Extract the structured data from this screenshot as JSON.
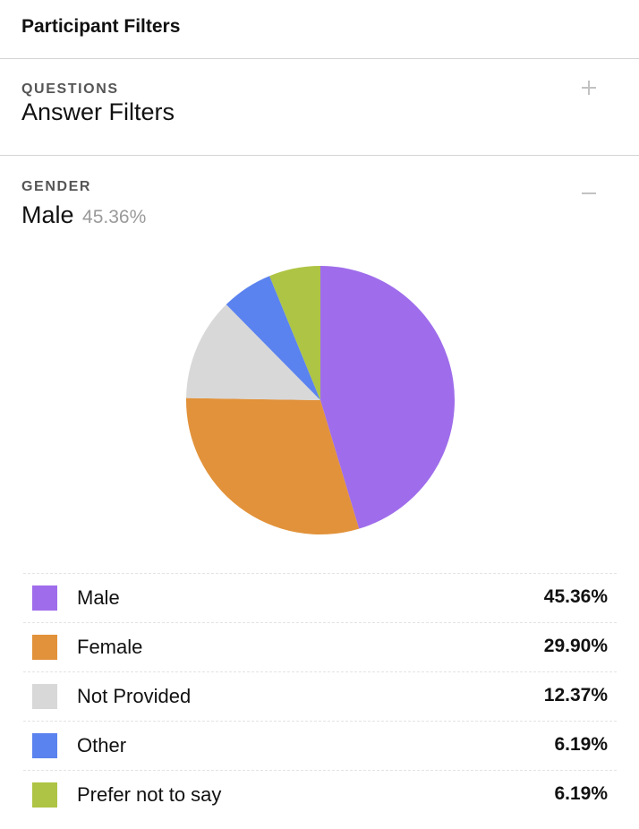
{
  "header": {
    "title": "Participant Filters"
  },
  "questions": {
    "label": "QUESTIONS",
    "value": "Answer Filters",
    "toggle_icon": "plus-icon"
  },
  "gender": {
    "label": "GENDER",
    "selected": "Male",
    "selected_pct": "45.36%",
    "toggle_icon": "minus-icon"
  },
  "chart_data": {
    "type": "pie",
    "categories": [
      "Male",
      "Female",
      "Not Provided",
      "Other",
      "Prefer not to say"
    ],
    "values": [
      45.36,
      29.9,
      12.37,
      6.19,
      6.19
    ],
    "colors": [
      "#9f6deb",
      "#e2923a",
      "#d8d8d8",
      "#5b83ef",
      "#aec444"
    ],
    "labels": [
      "45.36%",
      "29.90%",
      "12.37%",
      "6.19%",
      "6.19%"
    ]
  },
  "legend": [
    {
      "label": "Male",
      "value": "45.36%",
      "color": "#9f6deb"
    },
    {
      "label": "Female",
      "value": "29.90%",
      "color": "#e2923a"
    },
    {
      "label": "Not Provided",
      "value": "12.37%",
      "color": "#d8d8d8"
    },
    {
      "label": "Other",
      "value": "6.19%",
      "color": "#5b83ef"
    },
    {
      "label": "Prefer not to say",
      "value": "6.19%",
      "color": "#aec444"
    }
  ]
}
